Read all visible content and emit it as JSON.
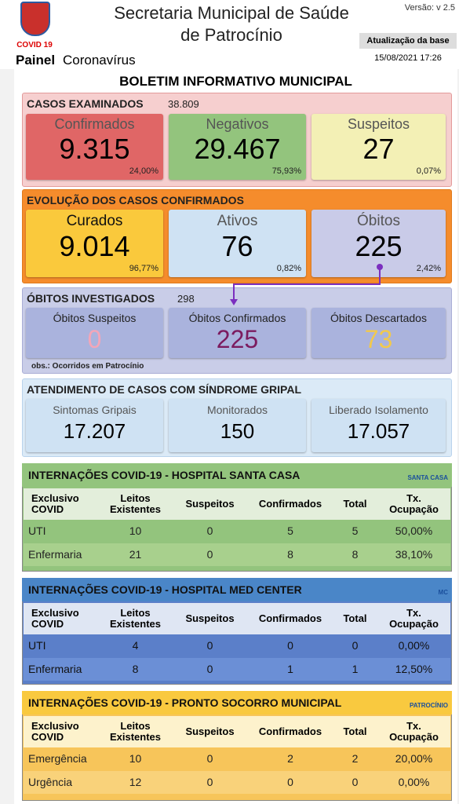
{
  "header": {
    "logo_text": "COVID 19",
    "title_line1": "Secretaria Municipal de Saúde",
    "title_line2": "de Patrocínio",
    "version": "Versão: v 2.5",
    "update_label": "Atualização da base",
    "update_date": "15/08/2021 17:26",
    "panel_bold": "Painel",
    "panel_rest": "Coronavírus"
  },
  "bulletin_title": "BOLETIM INFORMATIVO MUNICIPAL",
  "casos": {
    "title": "CASOS EXAMINADOS",
    "total": "38.809",
    "cards": [
      {
        "label": "Confirmados",
        "value": "9.315",
        "pct": "24,00%"
      },
      {
        "label": "Negativos",
        "value": "29.467",
        "pct": "75,93%"
      },
      {
        "label": "Suspeitos",
        "value": "27",
        "pct": "0,07%"
      }
    ]
  },
  "evolucao": {
    "title": "EVOLUÇÃO DOS CASOS CONFIRMADOS",
    "cards": [
      {
        "label": "Curados",
        "value": "9.014",
        "pct": "96,77%"
      },
      {
        "label": "Ativos",
        "value": "76",
        "pct": "0,82%"
      },
      {
        "label": "Óbitos",
        "value": "225",
        "pct": "2,42%"
      }
    ]
  },
  "obitos": {
    "title": "ÓBITOS INVESTIGADOS",
    "total": "298",
    "cards": [
      {
        "label": "Óbitos Suspeitos",
        "value": "0"
      },
      {
        "label": "Óbitos Confirmados",
        "value": "225"
      },
      {
        "label": "Óbitos Descartados",
        "value": "73"
      }
    ],
    "note": "obs.: Ocorridos em Patrocínio"
  },
  "atendimento": {
    "title": "ATENDIMENTO DE CASOS COM SÍNDROME GRIPAL",
    "cards": [
      {
        "label": "Sintomas Gripais",
        "value": "17.207"
      },
      {
        "label": "Monitorados",
        "value": "150"
      },
      {
        "label": "Liberado Isolamento",
        "value": "17.057"
      }
    ]
  },
  "hospitals": [
    {
      "title": "INTERNAÇÕES COVID-19 - HOSPITAL SANTA CASA",
      "logo_text": "SANTA CASA",
      "columns": [
        "Exclusivo COVID",
        "Leitos Existentes",
        "Suspeitos",
        "Confirmados",
        "Total",
        "Tx. Ocupação"
      ],
      "rows": [
        [
          "UTI",
          "10",
          "0",
          "5",
          "5",
          "50,00%"
        ],
        [
          "Enfermaria",
          "21",
          "0",
          "8",
          "8",
          "38,10%"
        ]
      ]
    },
    {
      "title": "INTERNAÇÕES COVID-19 - HOSPITAL MED CENTER",
      "logo_text": "MC",
      "columns": [
        "Exclusivo COVID",
        "Leitos Existentes",
        "Suspeitos",
        "Confirmados",
        "Total",
        "Tx. Ocupação"
      ],
      "rows": [
        [
          "UTI",
          "4",
          "0",
          "0",
          "0",
          "0,00%"
        ],
        [
          "Enfermaria",
          "8",
          "0",
          "1",
          "1",
          "12,50%"
        ]
      ]
    },
    {
      "title": "INTERNAÇÕES COVID-19 - PRONTO SOCORRO MUNICIPAL",
      "logo_text": "PATROCÍNIO",
      "columns": [
        "Exclusivo COVID",
        "Leitos Existentes",
        "Suspeitos",
        "Confirmados",
        "Total",
        "Tx. Ocupação"
      ],
      "rows": [
        [
          "Emergência",
          "10",
          "0",
          "2",
          "2",
          "20,00%"
        ],
        [
          "Urgência",
          "12",
          "0",
          "0",
          "0",
          "0,00%"
        ]
      ]
    }
  ]
}
